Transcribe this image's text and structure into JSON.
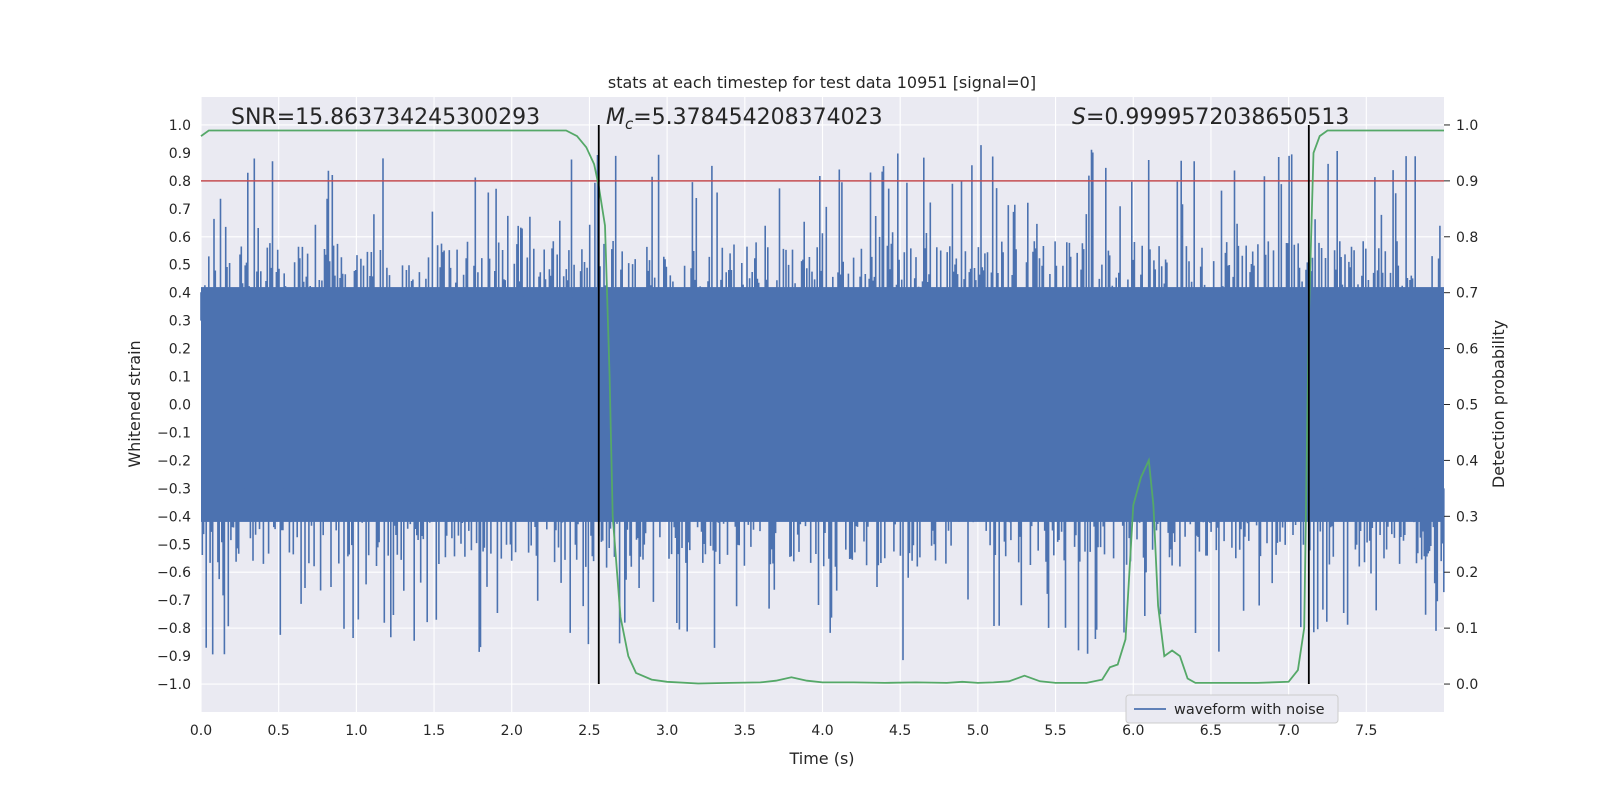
{
  "chart_data": {
    "type": "line",
    "title": "stats at each timestep for test data 10951 [signal=0]",
    "xlabel": "Time (s)",
    "ylabel": "Whitened strain",
    "y2label": "Detection probability",
    "xlim": [
      0.0,
      8.0
    ],
    "ylim": [
      -1.1,
      1.1
    ],
    "y2lim": [
      -0.05,
      1.05
    ],
    "xticks": [
      "0.0",
      "0.5",
      "1.0",
      "1.5",
      "2.0",
      "2.5",
      "3.0",
      "3.5",
      "4.0",
      "4.5",
      "5.0",
      "5.5",
      "6.0",
      "6.5",
      "7.0",
      "7.5"
    ],
    "yticks": [
      "1.0",
      "0.9",
      "0.8",
      "0.7",
      "0.6",
      "0.5",
      "0.4",
      "0.3",
      "0.2",
      "0.1",
      "0.0",
      "-0.1",
      "-0.2",
      "-0.3",
      "-0.4",
      "-0.5",
      "-0.6",
      "-0.7",
      "-0.8",
      "-0.9",
      "-1.0"
    ],
    "y2ticks": [
      "1.0",
      "0.9",
      "0.8",
      "0.7",
      "0.6",
      "0.5",
      "0.4",
      "0.3",
      "0.2",
      "0.1",
      "0.0"
    ],
    "grid": true,
    "legend_position": "lower-right",
    "annotations": {
      "snr": "SNR=15.863734245300293",
      "mc_symbol": "M",
      "mc_sub": "c",
      "mc_value": "=5.378454208374023",
      "s_symbol": "S",
      "s_value": "=0.9999572038650513"
    },
    "vlines": [
      2.56,
      7.13
    ],
    "vline_range": [
      0.0,
      1.0
    ],
    "threshold": {
      "axis": "y2",
      "value": 0.9,
      "color": "#c44e52"
    },
    "series": [
      {
        "name": "waveform with noise",
        "axis": "y",
        "color": "#4c72b0",
        "style": "dense-noise",
        "envelope_low": [
          0.0,
          -0.42
        ],
        "envelope_high": [
          0.0,
          0.42
        ]
      },
      {
        "axis": "y2",
        "color": "#55a868",
        "x": [
          0.0,
          0.05,
          0.1,
          0.5,
          1.0,
          1.5,
          2.0,
          2.2,
          2.35,
          2.42,
          2.48,
          2.53,
          2.56,
          2.6,
          2.63,
          2.65,
          2.7,
          2.75,
          2.8,
          2.9,
          3.0,
          3.2,
          3.4,
          3.6,
          3.7,
          3.8,
          3.9,
          4.0,
          4.2,
          4.4,
          4.6,
          4.8,
          4.9,
          5.0,
          5.1,
          5.2,
          5.3,
          5.4,
          5.5,
          5.6,
          5.7,
          5.8,
          5.85,
          5.9,
          5.95,
          6.0,
          6.05,
          6.1,
          6.13,
          6.16,
          6.2,
          6.25,
          6.3,
          6.35,
          6.4,
          6.45,
          6.5,
          6.6,
          6.8,
          7.0,
          7.06,
          7.1,
          7.13,
          7.16,
          7.2,
          7.25,
          7.3,
          7.5,
          7.8,
          8.0
        ],
        "y": [
          0.98,
          0.99,
          0.99,
          0.99,
          0.99,
          0.99,
          0.99,
          0.99,
          0.99,
          0.98,
          0.96,
          0.93,
          0.89,
          0.82,
          0.55,
          0.3,
          0.12,
          0.05,
          0.02,
          0.008,
          0.004,
          0.001,
          0.002,
          0.003,
          0.006,
          0.012,
          0.006,
          0.003,
          0.003,
          0.002,
          0.003,
          0.002,
          0.004,
          0.002,
          0.003,
          0.005,
          0.015,
          0.005,
          0.002,
          0.002,
          0.002,
          0.008,
          0.03,
          0.035,
          0.08,
          0.32,
          0.37,
          0.4,
          0.32,
          0.14,
          0.05,
          0.06,
          0.05,
          0.01,
          0.002,
          0.002,
          0.002,
          0.002,
          0.002,
          0.004,
          0.025,
          0.1,
          0.65,
          0.95,
          0.98,
          0.99,
          0.99,
          0.99,
          0.99,
          0.99
        ]
      }
    ],
    "legend_entries": [
      "waveform with noise"
    ]
  }
}
